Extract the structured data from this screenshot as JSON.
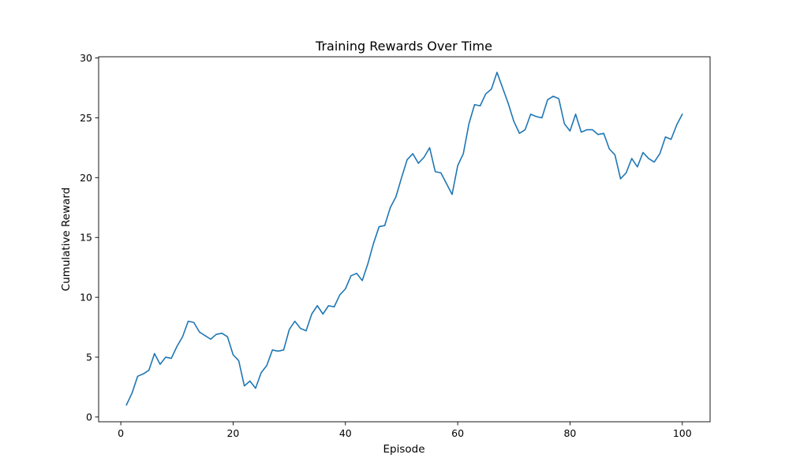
{
  "chart_data": {
    "type": "line",
    "title": "Training Rewards Over Time",
    "xlabel": "Episode",
    "ylabel": "Cumulative Reward",
    "xlim": [
      -3.95,
      104.95
    ],
    "ylim": [
      -0.4,
      30.1
    ],
    "xticks": [
      0,
      20,
      40,
      60,
      80,
      100
    ],
    "yticks": [
      0,
      5,
      10,
      15,
      20,
      25,
      30
    ],
    "grid": false,
    "line_color": "#1f77b4",
    "series": [
      {
        "x": [
          1,
          2,
          3,
          4,
          5,
          6,
          7,
          8,
          9,
          10,
          11,
          12,
          13,
          14,
          15,
          16,
          17,
          18,
          19,
          20,
          21,
          22,
          23,
          24,
          25,
          26,
          27,
          28,
          29,
          30,
          31,
          32,
          33,
          34,
          35,
          36,
          37,
          38,
          39,
          40,
          41,
          42,
          43,
          44,
          45,
          46,
          47,
          48,
          49,
          50,
          51,
          52,
          53,
          54,
          55,
          56,
          57,
          58,
          59,
          60,
          61,
          62,
          63,
          64,
          65,
          66,
          67,
          68,
          69,
          70,
          71,
          72,
          73,
          74,
          75,
          76,
          77,
          78,
          79,
          80,
          81,
          82,
          83,
          84,
          85,
          86,
          87,
          88,
          89,
          90,
          91,
          92,
          93,
          94,
          95,
          96,
          97,
          98,
          99,
          100
        ],
        "y": [
          1.0,
          2.0,
          3.4,
          3.6,
          3.9,
          5.3,
          4.4,
          5.0,
          4.9,
          5.9,
          6.7,
          8.0,
          7.9,
          7.1,
          6.8,
          6.5,
          6.9,
          7.0,
          6.7,
          5.2,
          4.7,
          2.6,
          3.0,
          2.4,
          3.7,
          4.3,
          5.6,
          5.5,
          5.6,
          7.3,
          8.0,
          7.4,
          7.2,
          8.6,
          9.3,
          8.6,
          9.3,
          9.2,
          10.2,
          10.7,
          11.8,
          12.0,
          11.4,
          12.8,
          14.5,
          15.9,
          16.0,
          17.5,
          18.4,
          20.0,
          21.5,
          22.0,
          21.2,
          21.7,
          22.5,
          20.5,
          20.4,
          19.5,
          18.6,
          21.0,
          22.0,
          24.5,
          26.1,
          26.0,
          27.0,
          27.4,
          28.8,
          27.5,
          26.2,
          24.7,
          23.7,
          24.0,
          25.3,
          25.1,
          25.0,
          26.5,
          26.8,
          26.6,
          24.5,
          23.9,
          25.3,
          23.8,
          24.0,
          24.0,
          23.6,
          23.7,
          22.4,
          21.9,
          19.9,
          20.4,
          21.6,
          20.9,
          22.1,
          21.6,
          21.3,
          22.0,
          23.4,
          23.2,
          24.4,
          25.3
        ]
      }
    ]
  }
}
